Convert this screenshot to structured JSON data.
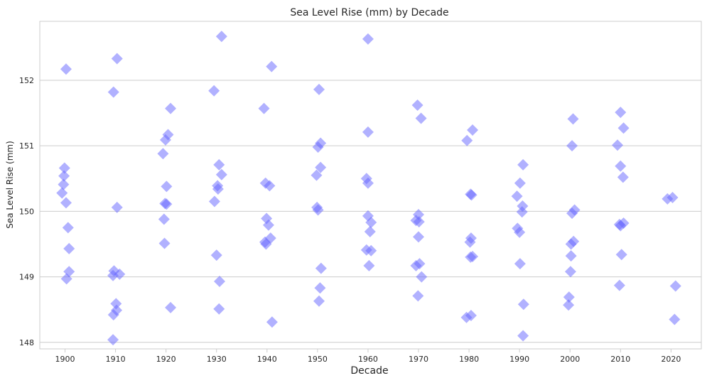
{
  "chart_data": {
    "type": "scatter",
    "title": "Sea Level Rise (mm) by Decade",
    "xlabel": "Decade",
    "ylabel": "Sea Level Rise (mm)",
    "x_ticks": [
      1900,
      1910,
      1920,
      1930,
      1940,
      1950,
      1960,
      1970,
      1980,
      1990,
      2000,
      2010,
      2020
    ],
    "y_ticks": [
      148,
      149,
      150,
      151,
      152
    ],
    "xlim": [
      1895,
      2026
    ],
    "ylim": [
      147.9,
      152.9
    ],
    "grid": "y",
    "marker": "diamond",
    "color": "#6464ff",
    "alpha": 0.5,
    "points": [
      [
        1900.2,
        152.17
      ],
      [
        1899.9,
        150.66
      ],
      [
        1899.8,
        150.54
      ],
      [
        1899.7,
        150.41
      ],
      [
        1899.4,
        150.28
      ],
      [
        1900.2,
        150.13
      ],
      [
        1900.6,
        149.75
      ],
      [
        1900.8,
        149.43
      ],
      [
        1900.8,
        149.08
      ],
      [
        1900.3,
        148.97
      ],
      [
        1910.3,
        152.33
      ],
      [
        1909.6,
        151.82
      ],
      [
        1910.3,
        150.06
      ],
      [
        1909.7,
        149.09
      ],
      [
        1909.5,
        149.02
      ],
      [
        1910.8,
        149.04
      ],
      [
        1910.1,
        148.59
      ],
      [
        1910.2,
        148.49
      ],
      [
        1909.6,
        148.42
      ],
      [
        1909.5,
        148.04
      ],
      [
        1920.9,
        151.57
      ],
      [
        1920.4,
        151.17
      ],
      [
        1919.9,
        151.09
      ],
      [
        1919.4,
        150.88
      ],
      [
        1920.1,
        150.38
      ],
      [
        1919.8,
        150.12
      ],
      [
        1920.1,
        150.11
      ],
      [
        1919.6,
        149.88
      ],
      [
        1919.7,
        149.51
      ],
      [
        1920.9,
        148.53
      ],
      [
        1931.0,
        152.67
      ],
      [
        1929.5,
        151.84
      ],
      [
        1930.5,
        150.71
      ],
      [
        1931.0,
        150.56
      ],
      [
        1930.2,
        150.39
      ],
      [
        1930.3,
        150.34
      ],
      [
        1929.6,
        150.15
      ],
      [
        1930.0,
        149.33
      ],
      [
        1930.6,
        148.93
      ],
      [
        1930.5,
        148.51
      ],
      [
        1940.9,
        152.21
      ],
      [
        1939.4,
        151.57
      ],
      [
        1939.7,
        150.43
      ],
      [
        1940.5,
        150.39
      ],
      [
        1939.9,
        149.89
      ],
      [
        1940.3,
        149.79
      ],
      [
        1940.7,
        149.59
      ],
      [
        1939.6,
        149.53
      ],
      [
        1939.8,
        149.5
      ],
      [
        1941.0,
        148.31
      ],
      [
        1950.3,
        151.86
      ],
      [
        1950.6,
        151.04
      ],
      [
        1950.1,
        150.98
      ],
      [
        1950.6,
        150.67
      ],
      [
        1949.8,
        150.55
      ],
      [
        1949.9,
        150.06
      ],
      [
        1950.1,
        150.02
      ],
      [
        1950.7,
        149.13
      ],
      [
        1950.5,
        148.83
      ],
      [
        1950.3,
        148.63
      ],
      [
        1960.0,
        152.63
      ],
      [
        1960.0,
        151.21
      ],
      [
        1959.7,
        150.5
      ],
      [
        1960.0,
        150.43
      ],
      [
        1960.0,
        149.93
      ],
      [
        1960.6,
        149.83
      ],
      [
        1960.4,
        149.69
      ],
      [
        1959.7,
        149.41
      ],
      [
        1960.6,
        149.4
      ],
      [
        1960.2,
        149.17
      ],
      [
        1969.8,
        151.62
      ],
      [
        1970.5,
        151.42
      ],
      [
        1970.0,
        149.95
      ],
      [
        1969.5,
        149.86
      ],
      [
        1970.1,
        149.84
      ],
      [
        1970.0,
        149.61
      ],
      [
        1970.2,
        149.2
      ],
      [
        1969.5,
        149.17
      ],
      [
        1970.6,
        149.0
      ],
      [
        1969.9,
        148.71
      ],
      [
        1980.7,
        151.24
      ],
      [
        1979.6,
        151.08
      ],
      [
        1980.3,
        150.26
      ],
      [
        1980.5,
        150.25
      ],
      [
        1980.4,
        149.59
      ],
      [
        1980.2,
        149.53
      ],
      [
        1980.7,
        149.31
      ],
      [
        1980.3,
        149.3
      ],
      [
        1980.4,
        148.41
      ],
      [
        1979.5,
        148.38
      ],
      [
        1990.7,
        150.71
      ],
      [
        1990.1,
        150.43
      ],
      [
        1989.5,
        150.23
      ],
      [
        1990.6,
        150.08
      ],
      [
        1990.5,
        149.99
      ],
      [
        1989.6,
        149.74
      ],
      [
        1990.0,
        149.68
      ],
      [
        1990.1,
        149.2
      ],
      [
        1990.8,
        148.58
      ],
      [
        1990.7,
        148.1
      ],
      [
        2000.6,
        151.41
      ],
      [
        2000.4,
        151.0
      ],
      [
        2000.9,
        150.02
      ],
      [
        2000.4,
        149.97
      ],
      [
        2000.7,
        149.54
      ],
      [
        2000.2,
        149.5
      ],
      [
        2000.2,
        149.32
      ],
      [
        2000.1,
        149.08
      ],
      [
        1999.8,
        148.69
      ],
      [
        1999.7,
        148.57
      ],
      [
        2010.0,
        151.51
      ],
      [
        2010.6,
        151.27
      ],
      [
        2009.4,
        151.01
      ],
      [
        2010.0,
        150.69
      ],
      [
        2010.5,
        150.52
      ],
      [
        2010.6,
        149.82
      ],
      [
        2009.8,
        149.8
      ],
      [
        2010.0,
        149.78
      ],
      [
        2010.2,
        149.34
      ],
      [
        2009.8,
        148.87
      ],
      [
        2019.3,
        150.19
      ],
      [
        2020.3,
        150.21
      ],
      [
        2020.9,
        148.86
      ],
      [
        2020.7,
        148.35
      ]
    ]
  }
}
